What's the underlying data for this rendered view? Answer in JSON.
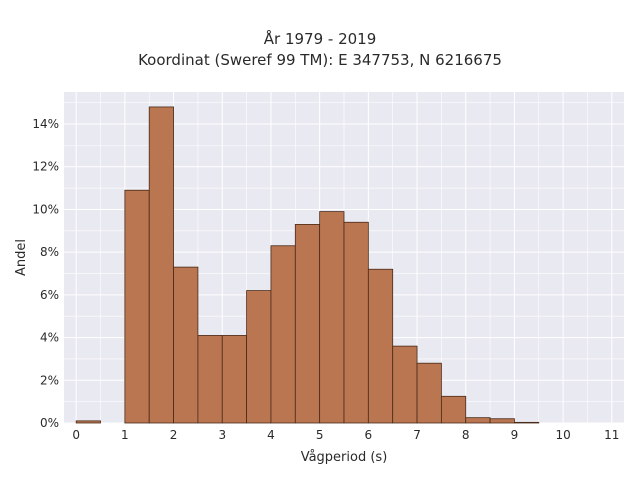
{
  "chart_data": {
    "type": "bar",
    "title": "År 1979 - 2019",
    "subtitle": "Koordinat (Sweref 99 TM): E 347753, N 6216675",
    "xlabel": "Vågperiod (s)",
    "ylabel": "Andel",
    "bin_width": 0.5,
    "bins_start": [
      0,
      0.5,
      1,
      1.5,
      2,
      2.5,
      3,
      3.5,
      4,
      4.5,
      5,
      5.5,
      6,
      6.5,
      7,
      7.5,
      8,
      8.5,
      9,
      9.5,
      10,
      10.5,
      11
    ],
    "values": [
      0.1,
      0,
      10.9,
      14.8,
      7.3,
      4.1,
      4.1,
      6.2,
      8.3,
      9.3,
      9.9,
      9.4,
      7.2,
      3.6,
      2.8,
      1.25,
      0.25,
      0.2,
      0.03,
      0,
      0,
      0,
      0
    ],
    "xlim": [
      -0.25,
      11.25
    ],
    "ylim": [
      0,
      15.5
    ],
    "xticks": [
      0,
      1,
      2,
      3,
      4,
      5,
      6,
      7,
      8,
      9,
      10,
      11
    ],
    "yticks": [
      0,
      2,
      4,
      6,
      8,
      10,
      12,
      14
    ],
    "ytick_labels": [
      "0%",
      "2%",
      "4%",
      "6%",
      "8%",
      "10%",
      "12%",
      "14%"
    ],
    "grid": true,
    "colors": {
      "bar": "#b97650",
      "bar_edge": "#4a2a18",
      "background": "#e9e9f1",
      "grid": "#ffffff"
    }
  }
}
